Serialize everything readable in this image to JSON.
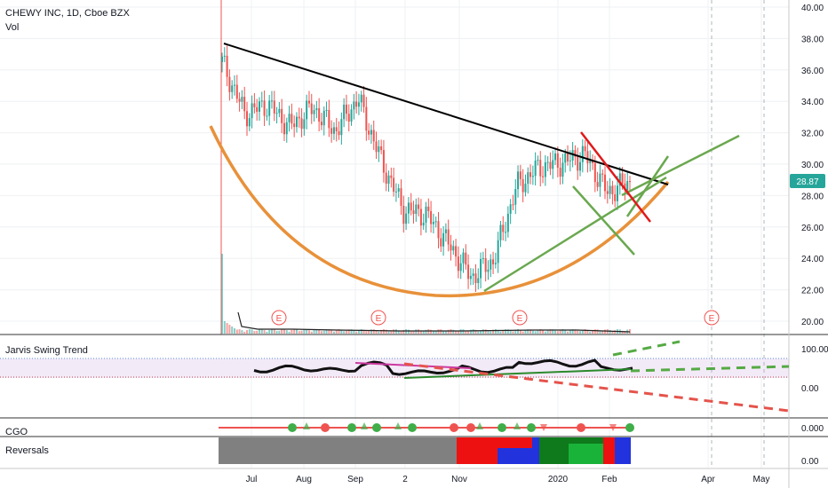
{
  "header": {
    "symbol_line": "CHEWY INC, 1D, Cboe BZX",
    "volume_label": "Vol"
  },
  "panes": {
    "jarvis": {
      "title": "Jarvis Swing Trend",
      "ticks": [
        "100.00",
        "0.00"
      ]
    },
    "cgo": {
      "title": "CGO",
      "ticks": [
        "0.000"
      ]
    },
    "reversals": {
      "title": "Reversals",
      "ticks": [
        "0.00"
      ]
    }
  },
  "price_badge": "28.87",
  "earnings_marker": "E",
  "colors": {
    "up": "#26a69a",
    "down": "#ef5350",
    "trendline": "#000000",
    "cup_curve": "#e8913a",
    "green_line": "#6aa84f",
    "red_line": "#e0191b",
    "badge": "#26a69a"
  },
  "chart_data": {
    "type": "line",
    "title": "CHEWY INC, 1D, Cboe BZX",
    "ylim": [
      19,
      40.8
    ],
    "y_ticks": [
      "20.00",
      "22.00",
      "24.00",
      "26.00",
      "28.00",
      "30.00",
      "32.00",
      "34.00",
      "36.00",
      "38.00",
      "40.00"
    ],
    "x_ticks": [
      "Jul",
      "Aug",
      "Sep",
      "2",
      "Nov",
      "2020",
      "Feb",
      "Apr",
      "May"
    ],
    "last_price": 28.87,
    "earnings_events": [
      "E",
      "E",
      "E",
      "E"
    ],
    "series": [
      {
        "x": [
          "Jun 14",
          "Jun 24",
          "Jul 8",
          "Jul 22",
          "Aug 5",
          "Aug 19",
          "Sep 2",
          "Sep 16",
          "Sep 30",
          "Oct 14",
          "Oct 28",
          "Nov 11",
          "Nov 25",
          "Dec 9",
          "Dec 23",
          "Jan 6",
          "Jan 20",
          "Feb 3",
          "Feb 11"
        ],
        "values": [
          36.5,
          33.2,
          33.8,
          32.4,
          33.6,
          32.1,
          34.2,
          30.3,
          27.1,
          26.8,
          24.9,
          22.8,
          23.9,
          28.6,
          29.8,
          30.1,
          30.6,
          28.2,
          28.87
        ]
      }
    ]
  }
}
